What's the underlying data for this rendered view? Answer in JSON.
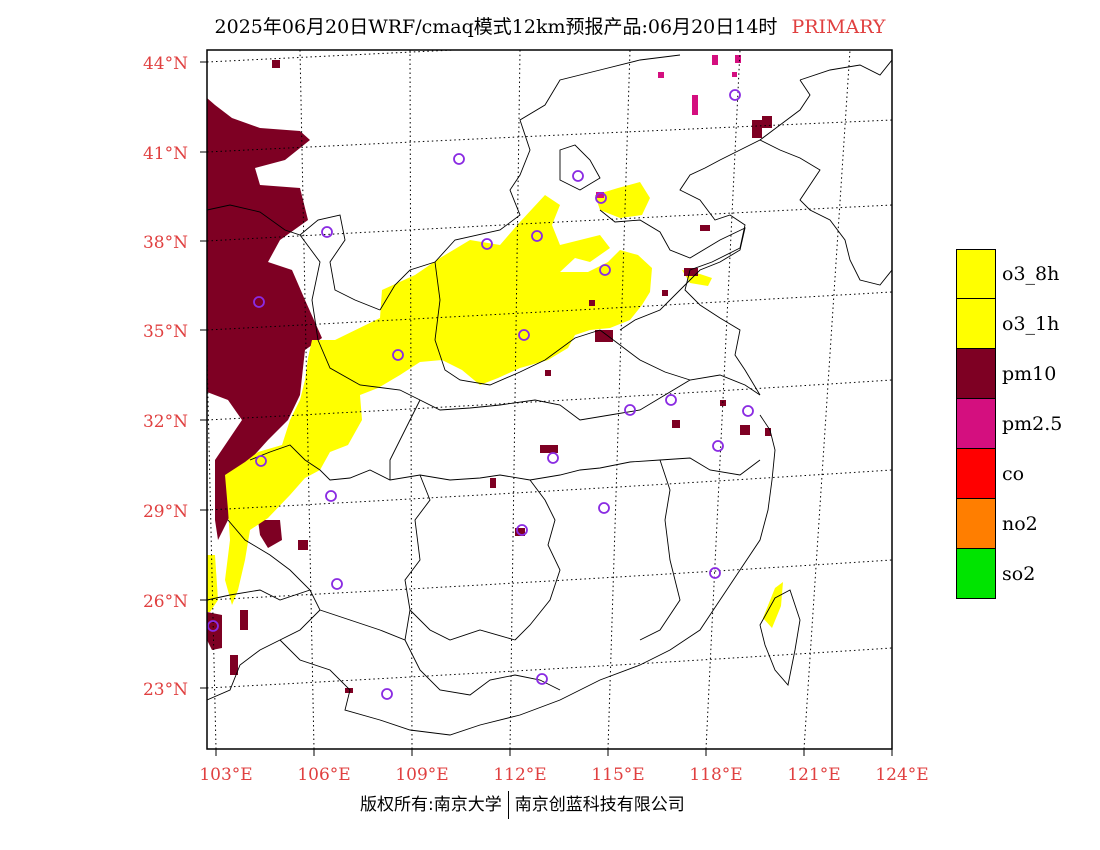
{
  "title": {
    "text": "2025年06月20日WRF/cmaq模式12km预报产品:06月20日14时",
    "tag": "PRIMARY"
  },
  "lat_labels": [
    "44°N",
    "41°N",
    "38°N",
    "35°N",
    "32°N",
    "29°N",
    "26°N",
    "23°N"
  ],
  "lon_labels": [
    "103°E",
    "106°E",
    "109°E",
    "112°E",
    "115°E",
    "118°E",
    "121°E",
    "124°E"
  ],
  "legend": [
    {
      "label": "o3_8h",
      "color": "#ffff00"
    },
    {
      "label": "o3_1h",
      "color": "#ffff00"
    },
    {
      "label": "pm10",
      "color": "#7e0023"
    },
    {
      "label": "pm2.5",
      "color": "#d40f7f"
    },
    {
      "label": "co",
      "color": "#ff0000"
    },
    {
      "label": "no2",
      "color": "#ff7e00"
    },
    {
      "label": "so2",
      "color": "#00e400"
    }
  ],
  "credit": {
    "left": "版权所有:南京大学",
    "right": "南京创蓝科技有限公司"
  },
  "colors": {
    "label_red": "#e04040",
    "station_marker": "#8a2be2",
    "o3": "#ffff00",
    "pm10": "#7e0023",
    "pm25": "#d40f7f"
  }
}
